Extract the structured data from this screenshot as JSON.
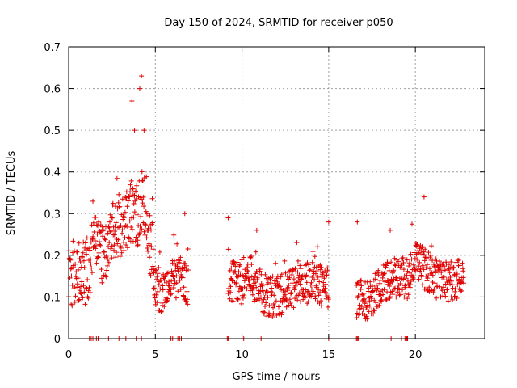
{
  "chart_data": {
    "type": "scatter",
    "title": "Day 150 of 2024, SRMTID for receiver p050",
    "xlabel": "GPS time / hours",
    "ylabel": "SRMTID / TECUs",
    "xlim": [
      0,
      24
    ],
    "ylim": [
      0,
      0.7
    ],
    "xticks": [
      0,
      5,
      10,
      15,
      20
    ],
    "xtick_labels": [
      "0",
      "5",
      "10",
      "15",
      "20"
    ],
    "yticks": [
      0,
      0.1,
      0.2,
      0.3,
      0.4,
      0.5,
      0.6,
      0.7
    ],
    "ytick_labels": [
      "0",
      "0.1",
      "0.2",
      "0.3",
      "0.4",
      "0.5",
      "0.6",
      "0.7"
    ],
    "grid": true,
    "marker": "+",
    "marker_color": "#e00000",
    "series": [
      {
        "name": "SRMTID",
        "segments": [
          {
            "t_start": 0.0,
            "t_end": 4.9,
            "base_profile": [
              [
                0,
                0.15
              ],
              [
                0.5,
                0.17
              ],
              [
                1,
                0.16
              ],
              [
                1.5,
                0.22
              ],
              [
                2,
                0.2
              ],
              [
                2.5,
                0.25
              ],
              [
                3,
                0.27
              ],
              [
                3.5,
                0.3
              ],
              [
                4,
                0.3
              ],
              [
                4.3,
                0.35
              ],
              [
                4.6,
                0.25
              ],
              [
                4.9,
                0.2
              ]
            ],
            "spread": 0.08
          },
          {
            "t_start": 4.9,
            "t_end": 6.9,
            "base_profile": [
              [
                4.9,
                0.12
              ],
              [
                5.5,
                0.1
              ],
              [
                6,
                0.14
              ],
              [
                6.5,
                0.15
              ],
              [
                6.9,
                0.12
              ]
            ],
            "spread": 0.05
          },
          {
            "t_start": 9.2,
            "t_end": 15.0,
            "base_profile": [
              [
                9.2,
                0.14
              ],
              [
                10,
                0.13
              ],
              [
                10.5,
                0.15
              ],
              [
                11,
                0.12
              ],
              [
                11.5,
                0.1
              ],
              [
                12,
                0.1
              ],
              [
                13,
                0.12
              ],
              [
                14,
                0.14
              ],
              [
                14.5,
                0.13
              ],
              [
                15,
                0.12
              ]
            ],
            "spread": 0.05
          },
          {
            "t_start": 16.6,
            "t_end": 22.8,
            "base_profile": [
              [
                16.6,
                0.1
              ],
              [
                17,
                0.09
              ],
              [
                17.5,
                0.1
              ],
              [
                18,
                0.12
              ],
              [
                18.5,
                0.14
              ],
              [
                19,
                0.15
              ],
              [
                19.5,
                0.14
              ],
              [
                20,
                0.18
              ],
              [
                20.5,
                0.17
              ],
              [
                21,
                0.15
              ],
              [
                21.5,
                0.14
              ],
              [
                22,
                0.14
              ],
              [
                22.8,
                0.15
              ]
            ],
            "spread": 0.05
          }
        ],
        "peaks": [
          [
            3.65,
            0.57
          ],
          [
            4.2,
            0.63
          ],
          [
            4.1,
            0.6
          ],
          [
            3.8,
            0.5
          ],
          [
            4.35,
            0.5
          ],
          [
            20.5,
            0.34
          ],
          [
            18.55,
            0.26
          ],
          [
            9.2,
            0.29
          ],
          [
            15.0,
            0.28
          ],
          [
            16.65,
            0.28
          ],
          [
            6.7,
            0.3
          ],
          [
            1.4,
            0.33
          ],
          [
            10.85,
            0.26
          ]
        ],
        "zero_points": [
          1.2,
          1.3,
          1.4,
          1.6,
          1.7,
          2.3,
          2.9,
          3.3,
          3.9,
          4.2,
          5.9,
          6.0,
          6.3,
          6.4,
          6.5,
          9.15,
          9.2,
          10.0,
          10.1,
          11.1,
          15.0,
          16.6,
          16.65,
          16.7,
          16.75,
          18.6,
          19.2,
          19.4,
          19.5,
          19.55
        ]
      }
    ]
  }
}
